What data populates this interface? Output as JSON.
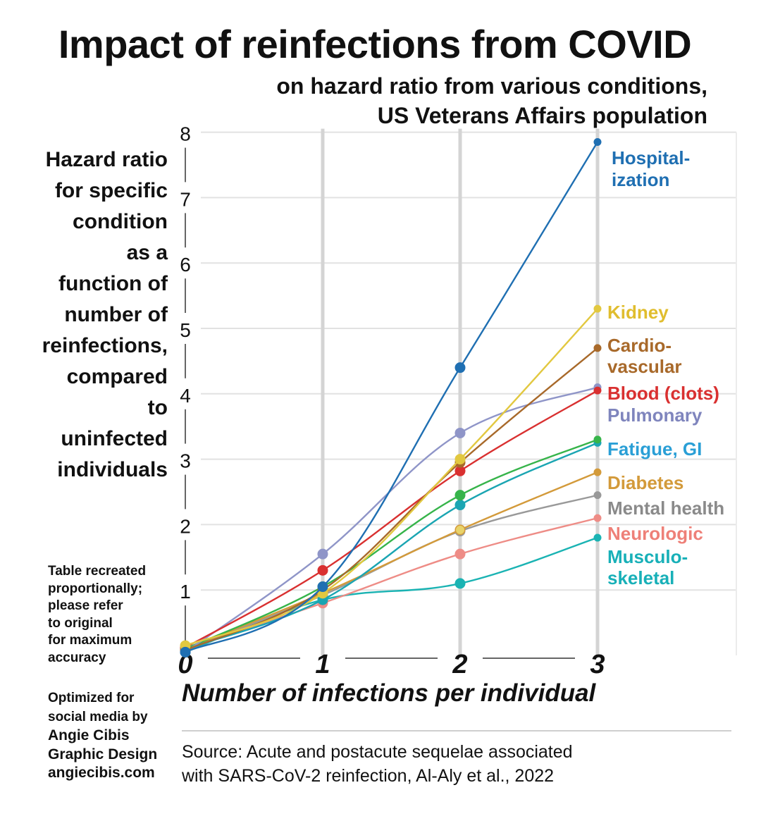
{
  "title": "Impact of reinfections from COVID",
  "subtitle_line1": "on hazard ratio from various conditions,",
  "subtitle_line2": "US Veterans Affairs population",
  "ylabel_lines": [
    "Hazard ratio",
    "for specific",
    "condition",
    "as a",
    "function of",
    "number of",
    "reinfections,",
    "compared",
    "to",
    "uninfected",
    "individuals"
  ],
  "note_lines": [
    "Table recreated",
    "proportionally;",
    "please refer",
    "to original",
    "for maximum",
    "accuracy"
  ],
  "credit_lines": [
    "Optimized for",
    "social media by",
    "Angie Cibis",
    "Graphic Design",
    "angiecibis.com"
  ],
  "source_line1": "Source: Acute and postacute sequelae associated",
  "source_line2": "with SARS-CoV-2 reinfection, Al-Aly et al., 2022",
  "chart_data": {
    "type": "line",
    "xlabel": "Number of infections per individual",
    "ylabel": "Hazard ratio for specific condition as a function of number of reinfections, compared to uninfected individuals",
    "x": [
      0,
      1,
      2,
      3
    ],
    "x_tick_labels": [
      "0",
      "1",
      "2",
      "3"
    ],
    "y_ticks": [
      1,
      2,
      3,
      4,
      5,
      6,
      7,
      8
    ],
    "ylim": [
      0,
      8
    ],
    "grid": true,
    "series": [
      {
        "name": "Hospital-|ization",
        "color": "#1f6fb2",
        "values": [
          0.05,
          1.05,
          4.4,
          7.85
        ]
      },
      {
        "name": "Kidney",
        "color": "#e2c840",
        "values": [
          0.15,
          0.95,
          3.0,
          5.3
        ]
      },
      {
        "name": "Cardio-|vascular",
        "color": "#a8692a",
        "values": [
          0.08,
          1.0,
          2.95,
          4.7
        ]
      },
      {
        "name": "Blood (clots)",
        "color": "#d93030",
        "values": [
          0.12,
          1.3,
          2.82,
          4.05
        ]
      },
      {
        "name": "Pulmonary",
        "color": "#8f95c8",
        "values": [
          0.05,
          1.55,
          3.4,
          4.1
        ]
      },
      {
        "name": "Fatigue, GI",
        "color": "#36b44a",
        "values": [
          0.1,
          1.05,
          2.45,
          3.3
        ]
      },
      {
        "name": "",
        "color": "#1aa5b2",
        "values": [
          0.1,
          0.85,
          2.3,
          3.25
        ]
      },
      {
        "name": "Diabetes",
        "color": "#d39a3a",
        "values": [
          0.1,
          0.95,
          1.92,
          2.8
        ]
      },
      {
        "name": "Mental health",
        "color": "#999999",
        "values": [
          0.08,
          0.92,
          1.9,
          2.45
        ]
      },
      {
        "name": "Neurologic",
        "color": "#ee8c86",
        "values": [
          0.1,
          0.8,
          1.55,
          2.1
        ]
      },
      {
        "name": "Musculo-|skeletal",
        "color": "#1ab3b3",
        "values": [
          0.05,
          0.85,
          1.1,
          1.8
        ]
      }
    ],
    "label_colors": {
      "Hospital-|ization": "#1f6fb2",
      "Kidney": "#e0bd2e",
      "Cardio-|vascular": "#a8692a",
      "Blood (clots)": "#d93030",
      "Pulmonary": "#7f85bd",
      "Fatigue, GI": "#2a9fd6",
      "Diabetes": "#d39a3a",
      "Mental health": "#8a8a8a",
      "Neurologic": "#ee8078",
      "Musculo-|skeletal": "#18b0b8"
    }
  }
}
